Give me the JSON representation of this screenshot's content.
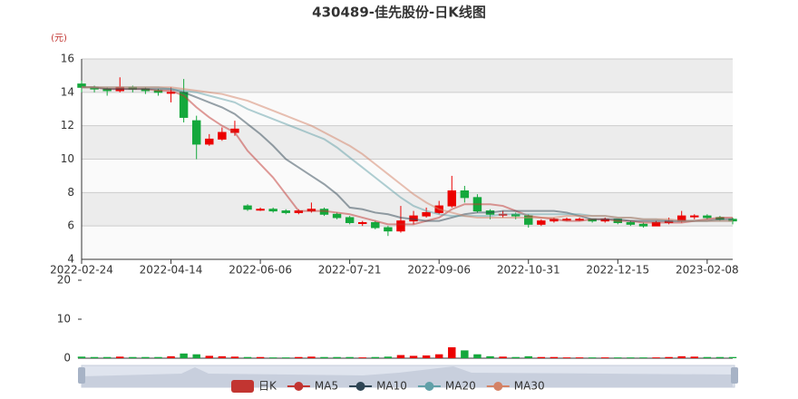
{
  "chart_data": {
    "type": "candlestick",
    "title": "430489-佳先股份-日K线图",
    "y_unit": "(元)",
    "categories": [
      "2022-02-24",
      null,
      null,
      null,
      null,
      null,
      null,
      "2022-04-14",
      null,
      null,
      null,
      null,
      null,
      null,
      "2022-06-06",
      null,
      null,
      null,
      null,
      null,
      null,
      "2022-07-21",
      null,
      null,
      null,
      null,
      null,
      null,
      "2022-09-06",
      null,
      null,
      null,
      null,
      null,
      null,
      "2022-10-31",
      null,
      null,
      null,
      null,
      null,
      null,
      "2022-12-15",
      null,
      null,
      null,
      null,
      null,
      null,
      "2023-02-08",
      null,
      null
    ],
    "ylim": [
      4,
      16
    ],
    "yticks": [
      4,
      6,
      8,
      10,
      12,
      14,
      16
    ],
    "grid": true,
    "up_color": "#ec0000",
    "down_color": "#14a83c",
    "series": [
      {
        "name": "日K",
        "color": "#c23531",
        "values": [
          [
            14.5,
            14.3,
            14.0,
            14.7
          ],
          [
            14.3,
            14.2,
            14.0,
            14.4
          ],
          [
            14.2,
            14.1,
            13.8,
            14.3
          ],
          [
            14.1,
            14.3,
            14.0,
            14.9
          ],
          [
            14.3,
            14.2,
            14.0,
            14.4
          ],
          [
            14.2,
            14.1,
            13.9,
            14.3
          ],
          [
            14.1,
            14.0,
            13.8,
            14.2
          ],
          [
            14.0,
            14.0,
            13.4,
            14.3
          ],
          [
            14.0,
            12.5,
            12.2,
            14.8
          ],
          [
            12.3,
            10.9,
            10.0,
            12.6
          ],
          [
            10.9,
            11.2,
            10.8,
            11.5
          ],
          [
            11.2,
            11.6,
            11.1,
            11.9
          ],
          [
            11.6,
            11.8,
            11.4,
            12.3
          ],
          [
            7.2,
            7.0,
            6.9,
            7.3
          ],
          [
            7.0,
            7.0,
            6.9,
            7.1
          ],
          [
            7.0,
            6.9,
            6.8,
            7.1
          ],
          [
            6.9,
            6.8,
            6.7,
            7.0
          ],
          [
            6.8,
            6.9,
            6.7,
            7.0
          ],
          [
            6.9,
            7.0,
            6.8,
            7.4
          ],
          [
            7.0,
            6.7,
            6.6,
            7.1
          ],
          [
            6.7,
            6.5,
            6.4,
            6.8
          ],
          [
            6.5,
            6.2,
            6.1,
            6.6
          ],
          [
            6.2,
            6.2,
            6.0,
            6.3
          ],
          [
            6.2,
            5.9,
            5.8,
            6.3
          ],
          [
            5.9,
            5.7,
            5.4,
            6.0
          ],
          [
            5.7,
            6.3,
            5.6,
            7.2
          ],
          [
            6.3,
            6.6,
            6.1,
            6.9
          ],
          [
            6.6,
            6.8,
            6.5,
            7.1
          ],
          [
            6.8,
            7.2,
            6.7,
            7.5
          ],
          [
            7.2,
            8.1,
            7.1,
            9.0
          ],
          [
            8.1,
            7.7,
            7.4,
            8.4
          ],
          [
            7.7,
            6.9,
            6.8,
            7.9
          ],
          [
            6.9,
            6.7,
            6.4,
            7.0
          ],
          [
            6.7,
            6.7,
            6.5,
            6.9
          ],
          [
            6.7,
            6.6,
            6.4,
            6.8
          ],
          [
            6.6,
            6.1,
            5.9,
            6.7
          ],
          [
            6.1,
            6.3,
            6.0,
            6.4
          ],
          [
            6.3,
            6.4,
            6.2,
            6.5
          ],
          [
            6.4,
            6.4,
            6.3,
            6.5
          ],
          [
            6.4,
            6.4,
            6.3,
            6.5
          ],
          [
            6.4,
            6.3,
            6.2,
            6.4
          ],
          [
            6.3,
            6.4,
            6.2,
            6.5
          ],
          [
            6.4,
            6.2,
            6.1,
            6.4
          ],
          [
            6.2,
            6.1,
            6.0,
            6.3
          ],
          [
            6.1,
            6.0,
            5.9,
            6.2
          ],
          [
            6.0,
            6.2,
            6.0,
            6.3
          ],
          [
            6.2,
            6.3,
            6.1,
            6.5
          ],
          [
            6.3,
            6.6,
            6.2,
            6.9
          ],
          [
            6.6,
            6.6,
            6.4,
            6.7
          ],
          [
            6.6,
            6.5,
            6.4,
            6.7
          ],
          [
            6.5,
            6.4,
            6.3,
            6.6
          ],
          [
            6.4,
            6.3,
            6.1,
            6.5
          ]
        ]
      },
      {
        "name": "MA5",
        "color": "#c23531",
        "values": [
          14.3,
          14.3,
          14.2,
          14.2,
          14.2,
          14.2,
          14.1,
          14.1,
          13.8,
          13.1,
          12.5,
          12.0,
          11.6,
          10.5,
          9.7,
          8.9,
          7.9,
          6.9,
          6.9,
          6.9,
          6.8,
          6.7,
          6.5,
          6.3,
          6.1,
          6.1,
          6.1,
          6.3,
          6.5,
          7.0,
          7.3,
          7.3,
          7.3,
          7.2,
          6.9,
          6.6,
          6.5,
          6.4,
          6.3,
          6.3,
          6.4,
          6.4,
          6.3,
          6.3,
          6.2,
          6.2,
          6.2,
          6.2,
          6.3,
          6.4,
          6.5,
          6.5
        ]
      },
      {
        "name": "MA10",
        "color": "#2f4554",
        "values": [
          14.3,
          14.3,
          14.2,
          14.2,
          14.2,
          14.2,
          14.2,
          14.2,
          14.0,
          13.7,
          13.4,
          13.1,
          12.7,
          12.1,
          11.5,
          10.8,
          10.0,
          9.5,
          9.0,
          8.5,
          7.9,
          7.1,
          7.0,
          6.8,
          6.7,
          6.5,
          6.4,
          6.3,
          6.3,
          6.5,
          6.7,
          6.8,
          6.8,
          6.9,
          6.9,
          6.9,
          6.9,
          6.9,
          6.8,
          6.6,
          6.4,
          6.4,
          6.4,
          6.3,
          6.3,
          6.3,
          6.3,
          6.3,
          6.3,
          6.3,
          6.4,
          6.4
        ]
      },
      {
        "name": "MA20",
        "color": "#61a0a8",
        "values": [
          14.3,
          14.3,
          14.3,
          14.3,
          14.3,
          14.3,
          14.3,
          14.2,
          14.1,
          14.0,
          13.8,
          13.6,
          13.4,
          13.0,
          12.7,
          12.4,
          12.1,
          11.8,
          11.5,
          11.2,
          10.7,
          10.1,
          9.5,
          8.9,
          8.3,
          7.7,
          7.2,
          6.9,
          6.7,
          6.6,
          6.6,
          6.6,
          6.6,
          6.7,
          6.7,
          6.7,
          6.7,
          6.7,
          6.7,
          6.7,
          6.6,
          6.6,
          6.5,
          6.5,
          6.4,
          6.4,
          6.3,
          6.3,
          6.3,
          6.3,
          6.3,
          6.3
        ]
      },
      {
        "name": "MA30",
        "color": "#d48265",
        "values": [
          14.3,
          14.3,
          14.3,
          14.3,
          14.3,
          14.3,
          14.3,
          14.3,
          14.2,
          14.1,
          14.0,
          13.9,
          13.7,
          13.5,
          13.2,
          12.9,
          12.6,
          12.3,
          12.0,
          11.6,
          11.2,
          10.8,
          10.3,
          9.7,
          9.1,
          8.5,
          7.9,
          7.4,
          7.0,
          6.8,
          6.6,
          6.5,
          6.5,
          6.5,
          6.5,
          6.5,
          6.5,
          6.5,
          6.6,
          6.6,
          6.6,
          6.6,
          6.5,
          6.5,
          6.4,
          6.4,
          6.4,
          6.3,
          6.3,
          6.3,
          6.3,
          6.3
        ]
      }
    ],
    "volume": {
      "ylim": [
        0,
        20
      ],
      "yticks": [
        0,
        10,
        20
      ],
      "values": [
        0.4,
        0.3,
        0.3,
        0.4,
        0.3,
        0.3,
        0.3,
        0.5,
        1.2,
        1.0,
        0.6,
        0.5,
        0.4,
        0.3,
        0.3,
        0.2,
        0.2,
        0.3,
        0.4,
        0.3,
        0.3,
        0.3,
        0.2,
        0.3,
        0.4,
        0.8,
        0.6,
        0.7,
        1.0,
        2.8,
        2.0,
        1.0,
        0.5,
        0.4,
        0.3,
        0.5,
        0.3,
        0.3,
        0.2,
        0.2,
        0.2,
        0.2,
        0.2,
        0.2,
        0.2,
        0.2,
        0.3,
        0.5,
        0.4,
        0.3,
        0.3,
        0.3
      ]
    }
  }
}
